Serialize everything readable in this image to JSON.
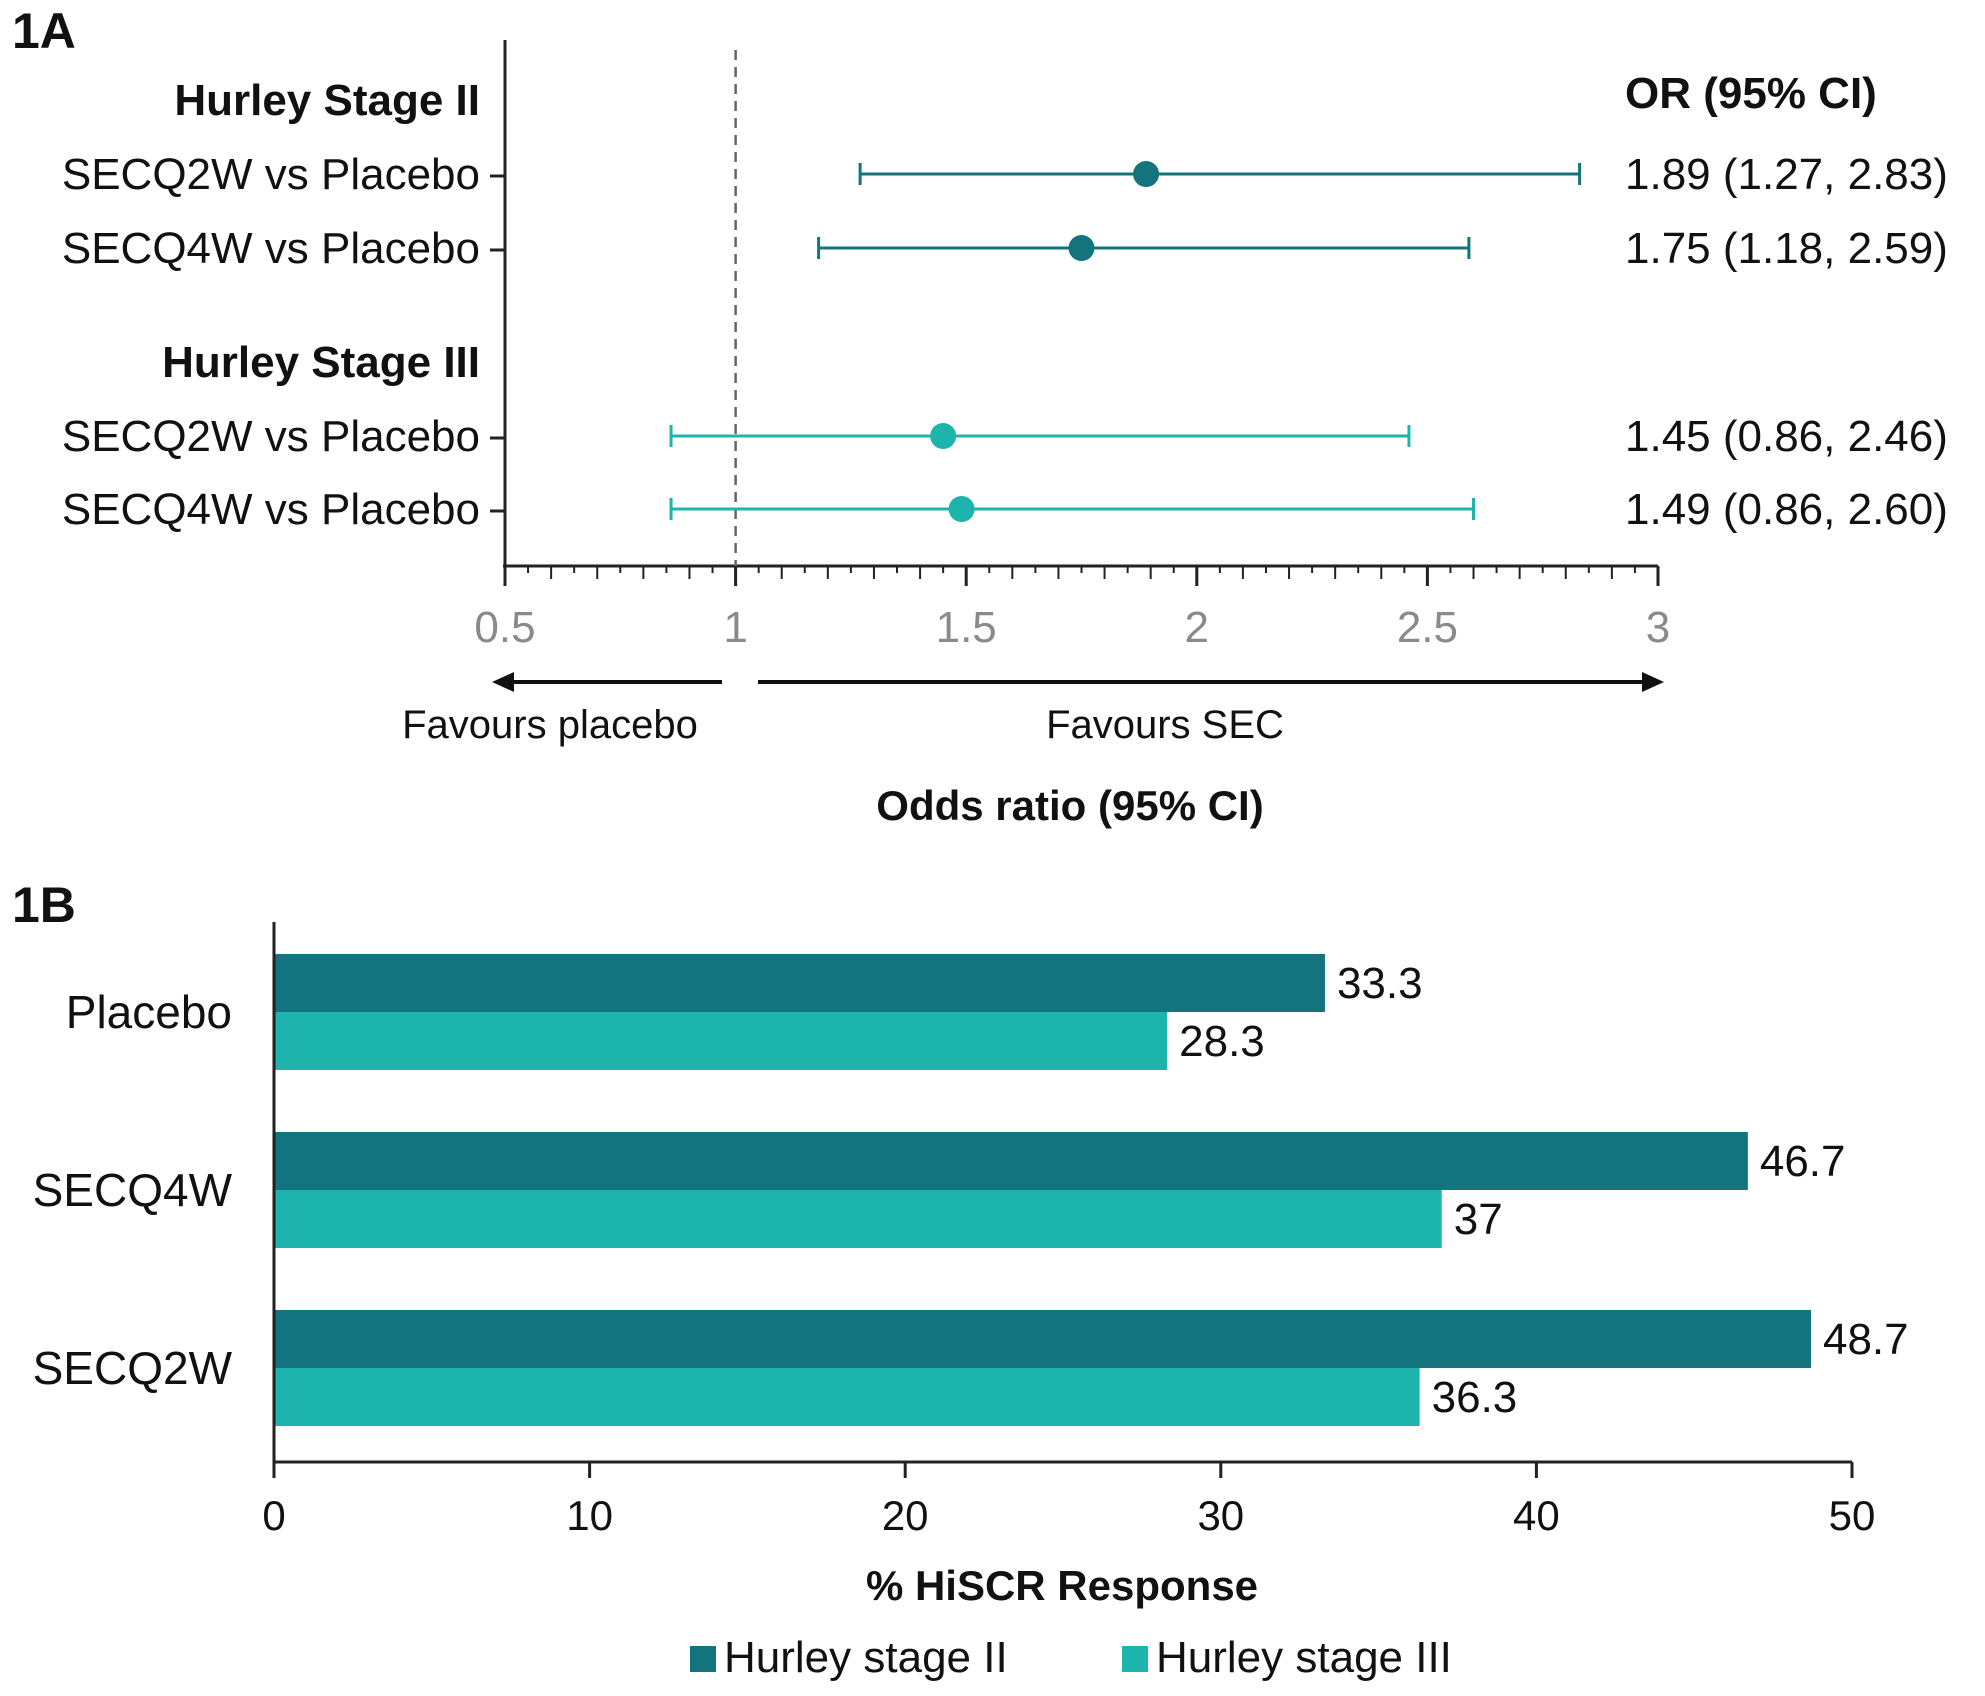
{
  "colors": {
    "stage2": "#13747d",
    "stage3": "#1cb4ab",
    "axis": "#222222",
    "ref_line": "#666666"
  },
  "chart_data": [
    {
      "panel": "1A",
      "type": "scatter",
      "subtype": "forest_plot",
      "xlabel": "Odds ratio (95% CI)",
      "xlim": [
        0.5,
        3
      ],
      "x_ticks": [
        "0.5",
        "1",
        "1.5",
        "2",
        "2.5",
        "3"
      ],
      "reference_x": 1,
      "favours_left": "Favours placebo",
      "favours_right": "Favours SEC",
      "or_header": "OR (95% CI)",
      "groups": [
        {
          "name": "Hurley Stage II",
          "color_key": "stage2",
          "rows": [
            {
              "label": "SECQ2W vs Placebo",
              "or": 1.89,
              "lo": 1.27,
              "hi": 2.83,
              "text": "1.89 (1.27, 2.83)"
            },
            {
              "label": "SECQ4W vs Placebo",
              "or": 1.75,
              "lo": 1.18,
              "hi": 2.59,
              "text": "1.75 (1.18, 2.59)"
            }
          ]
        },
        {
          "name": "Hurley Stage III",
          "color_key": "stage3",
          "rows": [
            {
              "label": "SECQ2W vs Placebo",
              "or": 1.45,
              "lo": 0.86,
              "hi": 2.46,
              "text": "1.45 (0.86, 2.46)"
            },
            {
              "label": "SECQ4W vs Placebo",
              "or": 1.49,
              "lo": 0.86,
              "hi": 2.6,
              "text": "1.49 (0.86, 2.60)"
            }
          ]
        }
      ]
    },
    {
      "panel": "1B",
      "type": "bar",
      "orientation": "horizontal",
      "xlabel": "% HiSCR Response",
      "xlim": [
        0,
        50
      ],
      "x_ticks": [
        "0",
        "10",
        "20",
        "30",
        "40",
        "50"
      ],
      "categories": [
        "Placebo",
        "SECQ4W",
        "SECQ2W"
      ],
      "series": [
        {
          "name": "Hurley stage II",
          "color_key": "stage2",
          "values": [
            33.3,
            46.7,
            48.7
          ],
          "labels": [
            "33.3",
            "46.7",
            "48.7"
          ]
        },
        {
          "name": "Hurley stage III",
          "color_key": "stage3",
          "values": [
            28.3,
            37,
            36.3
          ],
          "labels": [
            "28.3",
            "37",
            "36.3"
          ]
        }
      ],
      "legend": "bottom"
    }
  ]
}
